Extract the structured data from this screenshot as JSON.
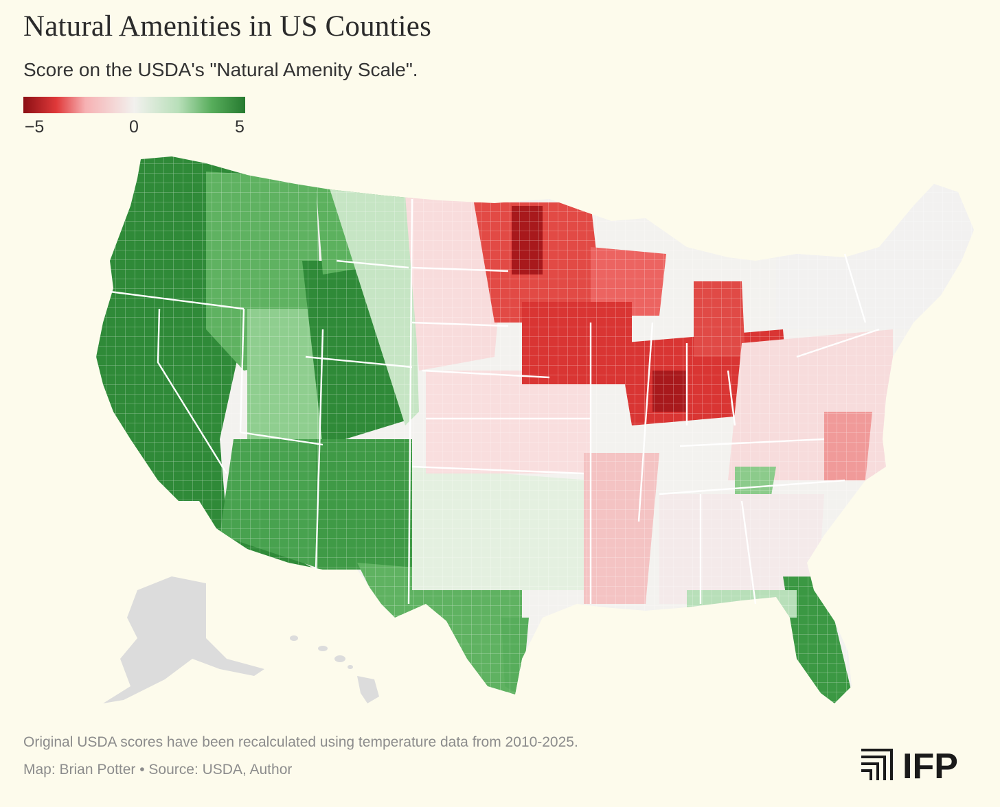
{
  "title": "Natural Amenities in US Counties",
  "subtitle": "Score on the USDA's \"Natural Amenity Scale\".",
  "legend": {
    "min_label": "−5",
    "mid_label": "0",
    "max_label": "5",
    "scale": [
      {
        "value": -5,
        "color": "#8b0f14"
      },
      {
        "value": -3.5,
        "color": "#e0393a"
      },
      {
        "value": -2.2,
        "color": "#f6b1b3"
      },
      {
        "value": 0,
        "color": "#f2f1ee"
      },
      {
        "value": 2,
        "color": "#b8dfb9"
      },
      {
        "value": 3.5,
        "color": "#57ad5b"
      },
      {
        "value": 5,
        "color": "#267a30"
      }
    ]
  },
  "colors": {
    "background": "#fdfbec",
    "no_data": "#dcdcdc",
    "state_border": "#ffffff"
  },
  "regions_description": [],
  "footnote": "Original USDA scores have been recalculated using temperature data from 2010-2025.",
  "credit": "Map: Brian Potter • Source: USDA, Author",
  "logo_text": "IFP"
}
